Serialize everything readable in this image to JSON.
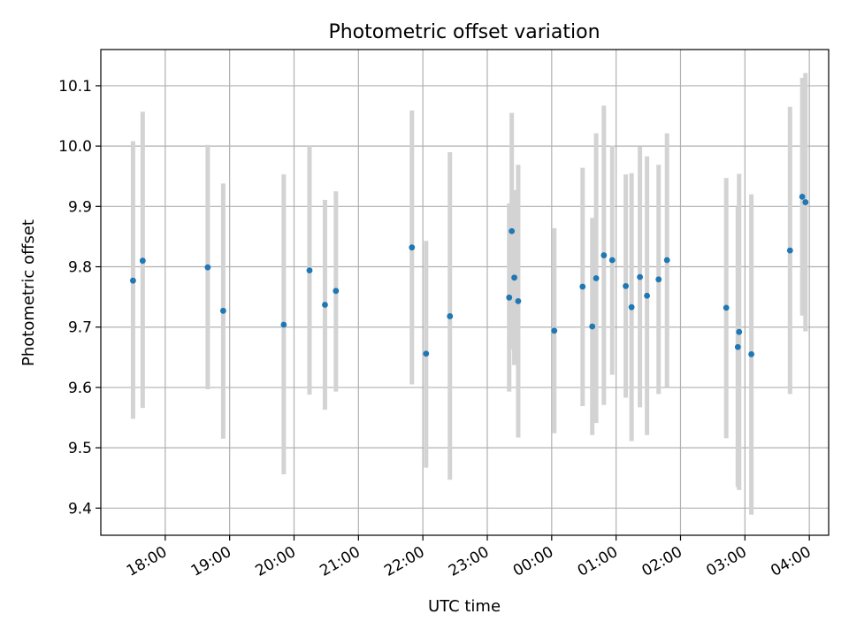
{
  "chart_data": {
    "type": "scatter",
    "title": "Photometric offset variation",
    "xlabel": "UTC time",
    "ylabel": "Photometric offset",
    "x_axis": {
      "unit": "hours since 17:00 UTC",
      "range": [
        0.0,
        11.3
      ],
      "ticks": [
        {
          "value": 1,
          "label": "18:00"
        },
        {
          "value": 2,
          "label": "19:00"
        },
        {
          "value": 3,
          "label": "20:00"
        },
        {
          "value": 4,
          "label": "21:00"
        },
        {
          "value": 5,
          "label": "22:00"
        },
        {
          "value": 6,
          "label": "23:00"
        },
        {
          "value": 7,
          "label": "00:00"
        },
        {
          "value": 8,
          "label": "01:00"
        },
        {
          "value": 9,
          "label": "02:00"
        },
        {
          "value": 10,
          "label": "03:00"
        },
        {
          "value": 11,
          "label": "04:00"
        }
      ]
    },
    "y_axis": {
      "range": [
        9.355,
        10.16
      ],
      "ticks": [
        {
          "value": 9.4,
          "label": "9.4"
        },
        {
          "value": 9.5,
          "label": "9.5"
        },
        {
          "value": 9.6,
          "label": "9.6"
        },
        {
          "value": 9.7,
          "label": "9.7"
        },
        {
          "value": 9.8,
          "label": "9.8"
        },
        {
          "value": 9.9,
          "label": "9.9"
        },
        {
          "value": 10.0,
          "label": "10.0"
        },
        {
          "value": 10.1,
          "label": "10.1"
        }
      ]
    },
    "grid": true,
    "marker_color": "#1f77b4",
    "errorbar_color": "#d3d3d3",
    "points": [
      {
        "x": 0.5,
        "y": 9.777,
        "low": 9.548,
        "high": 10.008
      },
      {
        "x": 0.65,
        "y": 9.81,
        "low": 9.566,
        "high": 10.057
      },
      {
        "x": 1.66,
        "y": 9.799,
        "low": 9.597,
        "high": 10.002
      },
      {
        "x": 1.9,
        "y": 9.727,
        "low": 9.515,
        "high": 9.938
      },
      {
        "x": 2.84,
        "y": 9.704,
        "low": 9.456,
        "high": 9.953
      },
      {
        "x": 3.24,
        "y": 9.794,
        "low": 9.588,
        "high": 10.0
      },
      {
        "x": 3.48,
        "y": 9.737,
        "low": 9.563,
        "high": 9.911
      },
      {
        "x": 3.65,
        "y": 9.76,
        "low": 9.593,
        "high": 9.925
      },
      {
        "x": 4.83,
        "y": 9.832,
        "low": 9.605,
        "high": 10.059
      },
      {
        "x": 5.05,
        "y": 9.656,
        "low": 9.467,
        "high": 9.843
      },
      {
        "x": 5.42,
        "y": 9.718,
        "low": 9.447,
        "high": 9.99
      },
      {
        "x": 6.34,
        "y": 9.749,
        "low": 9.593,
        "high": 9.905
      },
      {
        "x": 6.38,
        "y": 9.859,
        "low": 9.663,
        "high": 10.055
      },
      {
        "x": 6.42,
        "y": 9.782,
        "low": 9.637,
        "high": 9.927
      },
      {
        "x": 6.48,
        "y": 9.743,
        "low": 9.517,
        "high": 9.969
      },
      {
        "x": 7.04,
        "y": 9.694,
        "low": 9.524,
        "high": 9.864
      },
      {
        "x": 7.48,
        "y": 9.767,
        "low": 9.569,
        "high": 9.964
      },
      {
        "x": 7.63,
        "y": 9.701,
        "low": 9.521,
        "high": 9.881
      },
      {
        "x": 7.69,
        "y": 9.781,
        "low": 9.541,
        "high": 10.021
      },
      {
        "x": 7.81,
        "y": 9.819,
        "low": 9.571,
        "high": 10.067
      },
      {
        "x": 7.94,
        "y": 9.811,
        "low": 9.621,
        "high": 10.001
      },
      {
        "x": 8.15,
        "y": 9.768,
        "low": 9.583,
        "high": 9.953
      },
      {
        "x": 8.24,
        "y": 9.733,
        "low": 9.511,
        "high": 9.955
      },
      {
        "x": 8.37,
        "y": 9.783,
        "low": 9.567,
        "high": 9.999
      },
      {
        "x": 8.48,
        "y": 9.752,
        "low": 9.521,
        "high": 9.983
      },
      {
        "x": 8.66,
        "y": 9.779,
        "low": 9.589,
        "high": 9.969
      },
      {
        "x": 8.79,
        "y": 9.811,
        "low": 9.601,
        "high": 10.021
      },
      {
        "x": 9.71,
        "y": 9.732,
        "low": 9.516,
        "high": 9.947
      },
      {
        "x": 9.89,
        "y": 9.667,
        "low": 9.435,
        "high": 9.899
      },
      {
        "x": 9.91,
        "y": 9.692,
        "low": 9.43,
        "high": 9.954
      },
      {
        "x": 10.1,
        "y": 9.655,
        "low": 9.389,
        "high": 9.92
      },
      {
        "x": 10.7,
        "y": 9.827,
        "low": 9.589,
        "high": 10.065
      },
      {
        "x": 10.89,
        "y": 9.916,
        "low": 9.719,
        "high": 10.113
      },
      {
        "x": 10.94,
        "y": 9.907,
        "low": 9.693,
        "high": 10.121
      }
    ]
  }
}
